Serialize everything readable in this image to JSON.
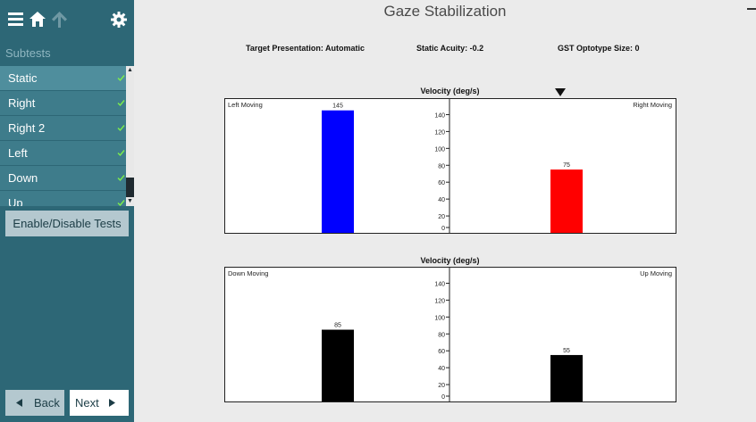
{
  "sidebar": {
    "subtests_label": "Subtests",
    "items": [
      {
        "label": "Static"
      },
      {
        "label": "Right"
      },
      {
        "label": "Right 2"
      },
      {
        "label": "Left"
      },
      {
        "label": "Down"
      },
      {
        "label": "Up"
      }
    ],
    "enable_disable_label": "Enable/Disable Tests",
    "back_label": "Back",
    "next_label": "Next"
  },
  "header": {
    "title": "Gaze Stabilization"
  },
  "info": {
    "target_presentation": "Target Presentation: Automatic",
    "static_acuity": "Static Acuity: -0.2",
    "optotype_size": "GST Optotype Size: 0"
  },
  "colors": {
    "sidebar": "#2d6776",
    "left_bar": "#0000ff",
    "right_bar": "#ff0000",
    "down_bar": "#000000",
    "up_bar": "#000000",
    "check": "#7cf04a"
  },
  "icons": [
    "hamburger-icon",
    "home-icon",
    "up-arrow-icon",
    "gear-icon",
    "check-icon",
    "triangle-left-icon",
    "triangle-right-icon",
    "down-triangle-marker-icon"
  ],
  "chart_data": [
    {
      "type": "bar",
      "title": "Velocity (deg/s)",
      "categories": [
        "Left Moving",
        "Right Moving"
      ],
      "values": [
        145,
        75
      ],
      "ylim": [
        0,
        150
      ],
      "yticks": [
        0,
        20,
        40,
        60,
        80,
        100,
        120,
        140
      ],
      "grid": false
    },
    {
      "type": "bar",
      "title": "Velocity (deg/s)",
      "categories": [
        "Down Moving",
        "Up Moving"
      ],
      "values": [
        85,
        55
      ],
      "ylim": [
        0,
        150
      ],
      "yticks": [
        0,
        20,
        40,
        60,
        80,
        100,
        120,
        140
      ],
      "grid": false
    }
  ]
}
